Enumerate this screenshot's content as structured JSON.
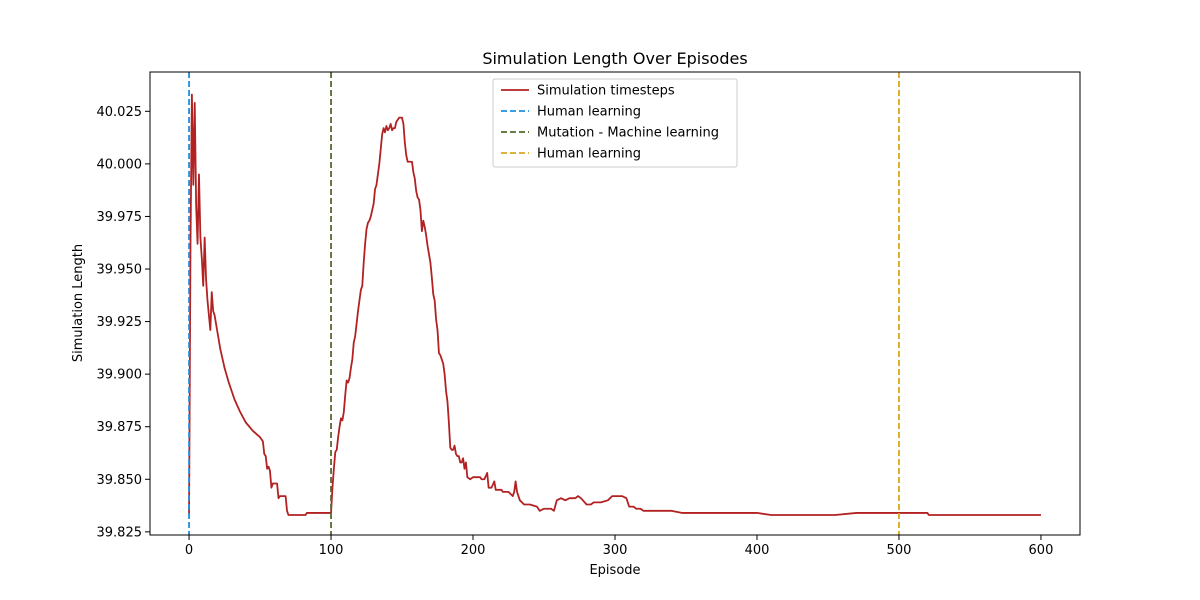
{
  "chart_data": {
    "type": "line",
    "title": "Simulation Length Over Episodes",
    "xlabel": "Episode",
    "ylabel": "Simulation Length",
    "xlim": [
      -27.5,
      627.5
    ],
    "ylim": [
      39.8235,
      40.0437
    ],
    "xticks": [
      "0",
      "100",
      "200",
      "300",
      "400",
      "500",
      "600"
    ],
    "yticks": [
      "39.825",
      "39.850",
      "39.875",
      "39.900",
      "39.925",
      "39.950",
      "39.975",
      "40.000",
      "40.025"
    ],
    "grid": false,
    "legend_position": "top-center",
    "series": [
      {
        "name": "Simulation timesteps",
        "color": "#b22222",
        "style": "solid",
        "points": [
          [
            0,
            39.833
          ],
          [
            1,
            39.96
          ],
          [
            2,
            40.033
          ],
          [
            3,
            39.99
          ],
          [
            4,
            40.029
          ],
          [
            5,
            39.98
          ],
          [
            6,
            39.962
          ],
          [
            7,
            39.995
          ],
          [
            8,
            39.965
          ],
          [
            9,
            39.955
          ],
          [
            10,
            39.942
          ],
          [
            11,
            39.965
          ],
          [
            12,
            39.945
          ],
          [
            13,
            39.935
          ],
          [
            14,
            39.928
          ],
          [
            15,
            39.921
          ],
          [
            16,
            39.939
          ],
          [
            17,
            39.93
          ],
          [
            18,
            39.928
          ],
          [
            20,
            39.92
          ],
          [
            22,
            39.912
          ],
          [
            25,
            39.903
          ],
          [
            28,
            39.896
          ],
          [
            32,
            39.888
          ],
          [
            36,
            39.882
          ],
          [
            40,
            39.877
          ],
          [
            45,
            39.873
          ],
          [
            50,
            39.87
          ],
          [
            52,
            39.868
          ],
          [
            53,
            39.862
          ],
          [
            54,
            39.861
          ],
          [
            55,
            39.855
          ],
          [
            56,
            39.856
          ],
          [
            57,
            39.854
          ],
          [
            58,
            39.846
          ],
          [
            59,
            39.848
          ],
          [
            62,
            39.848
          ],
          [
            63,
            39.841
          ],
          [
            64,
            39.842
          ],
          [
            68,
            39.842
          ],
          [
            69,
            39.835
          ],
          [
            70,
            39.833
          ],
          [
            82,
            39.833
          ],
          [
            83,
            39.834
          ],
          [
            100,
            39.834
          ],
          [
            101,
            39.846
          ],
          [
            102,
            39.855
          ],
          [
            103,
            39.863
          ],
          [
            104,
            39.864
          ],
          [
            105,
            39.87
          ],
          [
            106,
            39.875
          ],
          [
            107,
            39.879
          ],
          [
            108,
            39.878
          ],
          [
            109,
            39.882
          ],
          [
            110,
            39.89
          ],
          [
            111,
            39.897
          ],
          [
            112,
            39.896
          ],
          [
            113,
            39.898
          ],
          [
            114,
            39.903
          ],
          [
            115,
            39.907
          ],
          [
            116,
            39.915
          ],
          [
            117,
            39.918
          ],
          [
            118,
            39.924
          ],
          [
            119,
            39.93
          ],
          [
            120,
            39.935
          ],
          [
            121,
            39.94
          ],
          [
            122,
            39.942
          ],
          [
            123,
            39.953
          ],
          [
            124,
            39.962
          ],
          [
            125,
            39.969
          ],
          [
            126,
            39.972
          ],
          [
            127,
            39.973
          ],
          [
            128,
            39.975
          ],
          [
            129,
            39.978
          ],
          [
            130,
            39.981
          ],
          [
            131,
            39.988
          ],
          [
            132,
            39.99
          ],
          [
            133,
            39.995
          ],
          [
            134,
            40.0
          ],
          [
            135,
            40.007
          ],
          [
            136,
            40.014
          ],
          [
            137,
            40.017
          ],
          [
            138,
            40.015
          ],
          [
            139,
            40.018
          ],
          [
            140,
            40.016
          ],
          [
            141,
            40.017
          ],
          [
            142,
            40.019
          ],
          [
            143,
            40.016
          ],
          [
            144,
            40.017
          ],
          [
            145,
            40.017
          ],
          [
            146,
            40.02
          ],
          [
            147,
            40.021
          ],
          [
            148,
            40.022
          ],
          [
            150,
            40.022
          ],
          [
            151,
            40.019
          ],
          [
            152,
            40.01
          ],
          [
            153,
            40.004
          ],
          [
            154,
            40.001
          ],
          [
            157,
            40.001
          ],
          [
            158,
            39.996
          ],
          [
            159,
            39.993
          ],
          [
            160,
            39.987
          ],
          [
            161,
            39.984
          ],
          [
            162,
            39.983
          ],
          [
            163,
            39.978
          ],
          [
            164,
            39.968
          ],
          [
            165,
            39.973
          ],
          [
            166,
            39.97
          ],
          [
            167,
            39.966
          ],
          [
            168,
            39.961
          ],
          [
            169,
            39.957
          ],
          [
            170,
            39.953
          ],
          [
            171,
            39.946
          ],
          [
            172,
            39.938
          ],
          [
            173,
            39.935
          ],
          [
            174,
            39.926
          ],
          [
            175,
            39.921
          ],
          [
            176,
            39.91
          ],
          [
            177,
            39.909
          ],
          [
            178,
            39.907
          ],
          [
            179,
            39.905
          ],
          [
            180,
            39.9
          ],
          [
            181,
            39.892
          ],
          [
            182,
            39.887
          ],
          [
            183,
            39.877
          ],
          [
            184,
            39.865
          ],
          [
            185,
            39.864
          ],
          [
            186,
            39.864
          ],
          [
            187,
            39.866
          ],
          [
            188,
            39.862
          ],
          [
            189,
            39.861
          ],
          [
            190,
            39.861
          ],
          [
            191,
            39.858
          ],
          [
            192,
            39.858
          ],
          [
            193,
            39.86
          ],
          [
            194,
            39.855
          ],
          [
            195,
            39.858
          ],
          [
            196,
            39.851
          ],
          [
            198,
            39.85
          ],
          [
            200,
            39.851
          ],
          [
            205,
            39.851
          ],
          [
            206,
            39.85
          ],
          [
            208,
            39.85
          ],
          [
            210,
            39.853
          ],
          [
            211,
            39.846
          ],
          [
            213,
            39.846
          ],
          [
            215,
            39.849
          ],
          [
            216,
            39.845
          ],
          [
            220,
            39.845
          ],
          [
            221,
            39.844
          ],
          [
            225,
            39.844
          ],
          [
            228,
            39.842
          ],
          [
            229,
            39.844
          ],
          [
            230,
            39.849
          ],
          [
            231,
            39.844
          ],
          [
            233,
            39.84
          ],
          [
            236,
            39.838
          ],
          [
            240,
            39.838
          ],
          [
            245,
            39.837
          ],
          [
            247,
            39.835
          ],
          [
            250,
            39.836
          ],
          [
            255,
            39.836
          ],
          [
            257,
            39.835
          ],
          [
            259,
            39.84
          ],
          [
            262,
            39.841
          ],
          [
            265,
            39.84
          ],
          [
            268,
            39.841
          ],
          [
            272,
            39.841
          ],
          [
            274,
            39.842
          ],
          [
            276,
            39.841
          ],
          [
            280,
            39.838
          ],
          [
            283,
            39.838
          ],
          [
            285,
            39.839
          ],
          [
            290,
            39.839
          ],
          [
            295,
            39.84
          ],
          [
            298,
            39.842
          ],
          [
            305,
            39.842
          ],
          [
            308,
            39.841
          ],
          [
            310,
            39.837
          ],
          [
            313,
            39.837
          ],
          [
            315,
            39.836
          ],
          [
            318,
            39.836
          ],
          [
            320,
            39.835
          ],
          [
            325,
            39.835
          ],
          [
            340,
            39.835
          ],
          [
            347,
            39.834
          ],
          [
            400,
            39.834
          ],
          [
            410,
            39.833
          ],
          [
            420,
            39.833
          ],
          [
            430,
            39.833
          ],
          [
            440,
            39.833
          ],
          [
            455,
            39.833
          ],
          [
            470,
            39.834
          ],
          [
            500,
            39.834
          ],
          [
            520,
            39.834
          ],
          [
            521,
            39.833
          ],
          [
            550,
            39.833
          ],
          [
            580,
            39.833
          ],
          [
            600,
            39.833
          ]
        ]
      },
      {
        "name": "Human learning",
        "color": "#1f8fdf",
        "style": "dashed",
        "x": 0
      },
      {
        "name": "Mutation - Machine learning",
        "color": "#556b2f",
        "style": "dashed",
        "x": 100
      },
      {
        "name": "Human learning",
        "color": "#daa520",
        "style": "dashed",
        "x": 500
      }
    ]
  }
}
